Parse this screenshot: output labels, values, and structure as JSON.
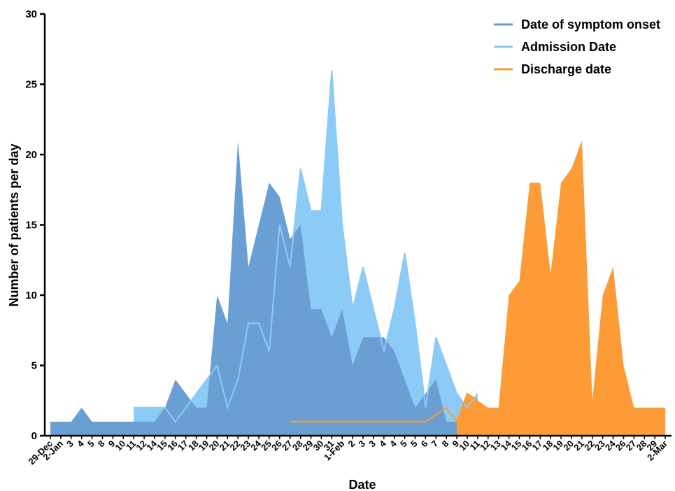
{
  "chart_data": {
    "type": "area",
    "title": "",
    "xlabel": "Date",
    "ylabel": "Number of patients per day",
    "ylim": [
      0,
      30
    ],
    "yticks": [
      0,
      5,
      10,
      15,
      20,
      25,
      30
    ],
    "grid": false,
    "legend_position": "top-right",
    "categories": [
      "29-Dec",
      "2-Jan",
      "3",
      "4",
      "5",
      "8",
      "9",
      "10",
      "11",
      "12",
      "14",
      "15",
      "16",
      "17",
      "18",
      "19",
      "20",
      "21",
      "22",
      "23",
      "24",
      "25",
      "26",
      "27",
      "28",
      "29",
      "30",
      "31",
      "1-Feb",
      "2",
      "3",
      "3",
      "4",
      "4",
      "5",
      "5",
      "6",
      "7",
      "8",
      "9",
      "10",
      "11",
      "12",
      "13",
      "14",
      "15",
      "16",
      "17",
      "18",
      "19",
      "20",
      "21",
      "22",
      "23",
      "24",
      "26",
      "27",
      "28",
      "29",
      "2-Mar"
    ],
    "series": [
      {
        "name": "Date of symptom onset",
        "color": "#6a9fd4",
        "style": "area",
        "points": [
          [
            0,
            1
          ],
          [
            1,
            1
          ],
          [
            2,
            1
          ],
          [
            3,
            2
          ],
          [
            4,
            1
          ],
          [
            5,
            1
          ],
          [
            6,
            1
          ],
          [
            7,
            1
          ],
          [
            8,
            1
          ],
          [
            9,
            1
          ],
          [
            10,
            1
          ],
          [
            11,
            2
          ],
          [
            12,
            4
          ],
          [
            13,
            3
          ],
          [
            14,
            2
          ],
          [
            15,
            2
          ],
          [
            16,
            10
          ],
          [
            17,
            8
          ],
          [
            18,
            21
          ],
          [
            19,
            12
          ],
          [
            20,
            15
          ],
          [
            21,
            18
          ],
          [
            22,
            17
          ],
          [
            23,
            14
          ],
          [
            24,
            15
          ],
          [
            25,
            9
          ],
          [
            26,
            9
          ],
          [
            27,
            7
          ],
          [
            28,
            9
          ],
          [
            29,
            5
          ],
          [
            30,
            7
          ],
          [
            31,
            7
          ],
          [
            32,
            7
          ],
          [
            33,
            6
          ],
          [
            34,
            4
          ],
          [
            35,
            2
          ],
          [
            36,
            3
          ],
          [
            37,
            4
          ],
          [
            38,
            1
          ],
          [
            39,
            1
          ],
          [
            40,
            1
          ]
        ]
      },
      {
        "name": "Admission Date",
        "color": "#8ccbf6",
        "style": "area",
        "points": [
          [
            8,
            2
          ],
          [
            9,
            2
          ],
          [
            10,
            2
          ],
          [
            11,
            2
          ],
          [
            12,
            1
          ],
          [
            13,
            2
          ],
          [
            14,
            3
          ],
          [
            15,
            4
          ],
          [
            16,
            5
          ],
          [
            17,
            2
          ],
          [
            18,
            4
          ],
          [
            19,
            8
          ],
          [
            20,
            8
          ],
          [
            21,
            6
          ],
          [
            22,
            15
          ],
          [
            23,
            12
          ],
          [
            24,
            19
          ],
          [
            25,
            16
          ],
          [
            26,
            16
          ],
          [
            27,
            26
          ],
          [
            28,
            15
          ],
          [
            29,
            9
          ],
          [
            30,
            12
          ],
          [
            31,
            9
          ],
          [
            32,
            6
          ],
          [
            33,
            9
          ],
          [
            34,
            13
          ],
          [
            35,
            8
          ],
          [
            36,
            2
          ],
          [
            37,
            7
          ],
          [
            38,
            5
          ],
          [
            39,
            3
          ],
          [
            40,
            2
          ],
          [
            41,
            3
          ]
        ]
      },
      {
        "name": "Discharge date",
        "color": "#fd9b36",
        "style": "line+area",
        "line_points": [
          [
            23,
            1
          ],
          [
            24,
            1
          ],
          [
            25,
            1
          ],
          [
            26,
            1
          ],
          [
            27,
            1
          ],
          [
            28,
            1
          ],
          [
            29,
            1
          ],
          [
            30,
            1
          ],
          [
            31,
            1
          ],
          [
            32,
            1
          ],
          [
            33,
            1
          ],
          [
            34,
            1
          ],
          [
            35,
            1
          ],
          [
            36,
            1
          ],
          [
            37,
            1.5
          ],
          [
            38,
            2
          ],
          [
            39,
            1
          ],
          [
            40,
            3
          ],
          [
            41,
            2.5
          ]
        ],
        "area_points": [
          [
            39,
            1
          ],
          [
            40,
            3
          ],
          [
            41,
            2.5
          ],
          [
            42,
            2
          ],
          [
            43,
            2
          ],
          [
            44,
            10
          ],
          [
            45,
            11
          ],
          [
            46,
            18
          ],
          [
            47,
            18
          ],
          [
            48,
            11.5
          ],
          [
            49,
            18
          ],
          [
            50,
            19
          ],
          [
            51,
            21
          ],
          [
            52,
            2.5
          ],
          [
            53,
            10
          ],
          [
            54,
            12
          ],
          [
            55,
            5
          ],
          [
            56,
            2
          ],
          [
            57,
            2
          ],
          [
            58,
            2
          ],
          [
            59,
            2
          ]
        ]
      }
    ]
  }
}
